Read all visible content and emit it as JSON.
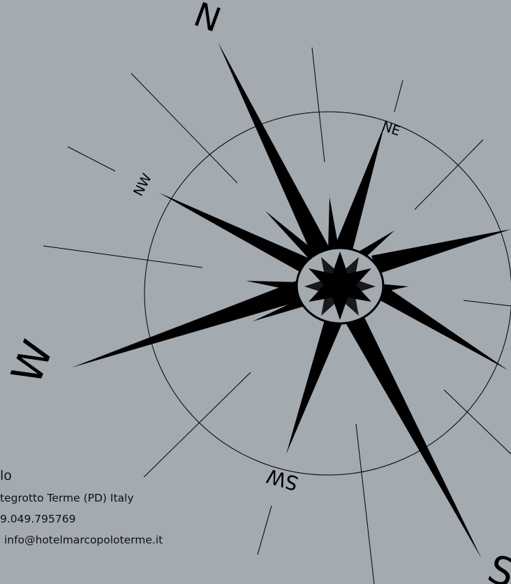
{
  "compass": {
    "labels": {
      "north": "N",
      "northeast": "NE",
      "northwest": "NW",
      "west": "W",
      "southwest": "SW",
      "south": "S"
    }
  },
  "contact": {
    "name": "lo",
    "address": "tegrotto Terme (PD) Italy",
    "phone": "9.049.795769",
    "email": "info@hotelmarcopoloterme.it"
  },
  "colors": {
    "background": "#a3aab0",
    "ink": "#000000"
  }
}
